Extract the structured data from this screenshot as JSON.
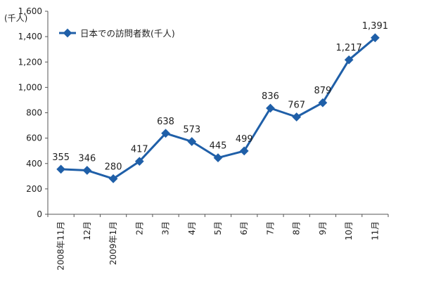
{
  "chart_data": {
    "type": "line",
    "unit_label": "(千人)",
    "ylim": [
      0,
      1600
    ],
    "yticks": [
      0,
      200,
      400,
      600,
      800,
      1000,
      1200,
      1400,
      1600
    ],
    "ytick_labels": [
      "0",
      "200",
      "400",
      "600",
      "800",
      "1,000",
      "1,200",
      "1,400",
      "1,600"
    ],
    "categories": [
      "2008年11月",
      "12月",
      "2009年1月",
      "2月",
      "3月",
      "4月",
      "5月",
      "6月",
      "7月",
      "8月",
      "9月",
      "10月",
      "11月"
    ],
    "series": [
      {
        "name": "日本での訪問者数(千人)",
        "values": [
          355,
          346,
          280,
          417,
          638,
          573,
          445,
          499,
          836,
          767,
          879,
          1217,
          1391
        ],
        "labels": [
          "355",
          "346",
          "280",
          "417",
          "638",
          "573",
          "445",
          "499",
          "836",
          "767",
          "879",
          "1,217",
          "1,391"
        ],
        "color": "#1f5fa8"
      }
    ],
    "grid": false,
    "legend_position": "top-left"
  }
}
